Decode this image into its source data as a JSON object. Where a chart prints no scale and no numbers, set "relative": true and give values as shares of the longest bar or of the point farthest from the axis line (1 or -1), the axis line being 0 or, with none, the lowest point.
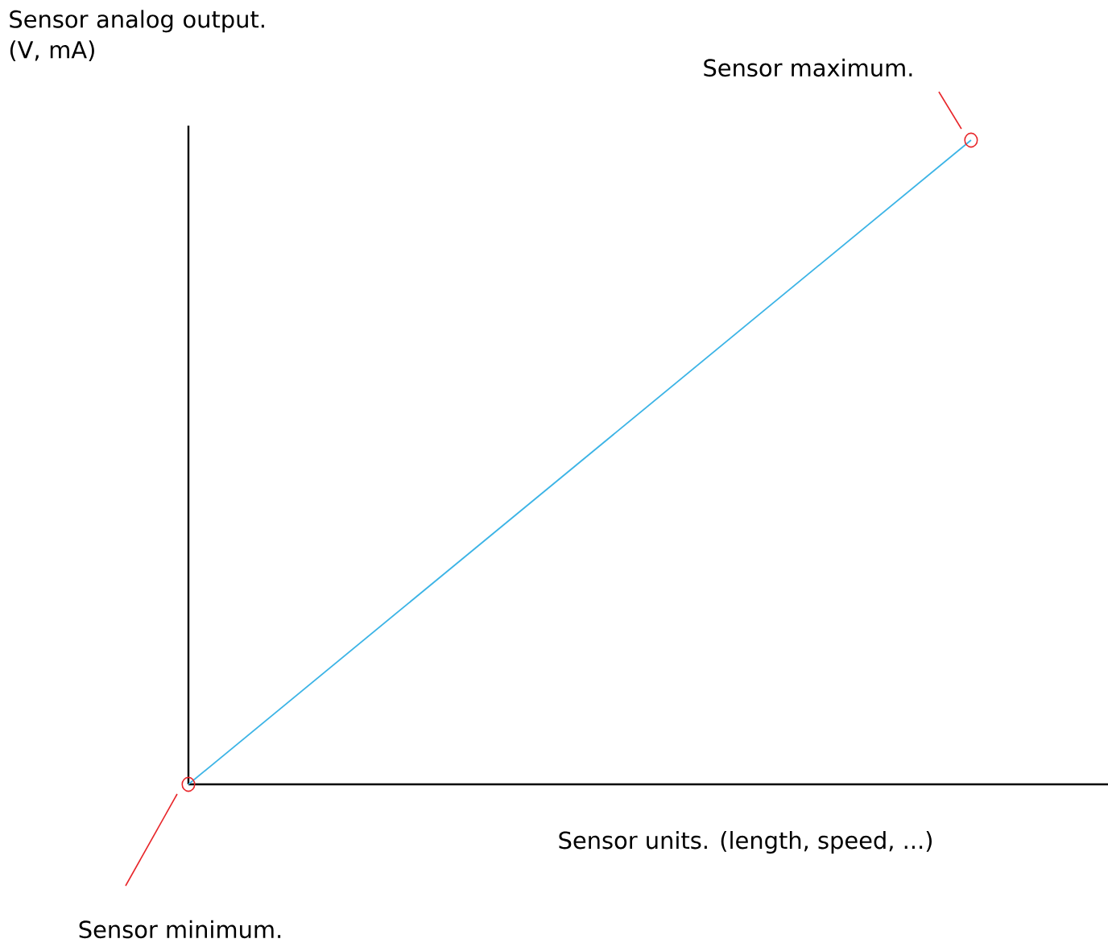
{
  "chart_data": {
    "type": "line",
    "relative": true,
    "categories": [
      null,
      null
    ],
    "values": [
      0,
      1
    ],
    "color": "#3cb4e6",
    "marker": "circle",
    "xlabel": "Sensor units. (length, speed, ...)",
    "ylabel": "Sensor analog output. (V, mA)",
    "annotations": [
      "Sensor maximum.",
      "Sensor minimum."
    ]
  }
}
